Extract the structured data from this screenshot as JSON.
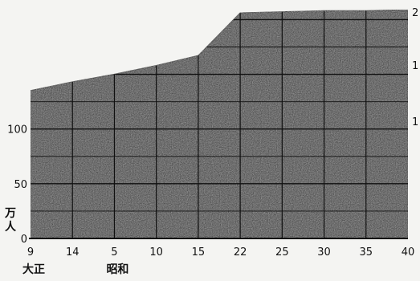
{
  "chart_data": {
    "type": "area",
    "title": "",
    "xlabel": "",
    "ylabel": "",
    "unit_label": [
      "万",
      "人"
    ],
    "x_tick_labels": [
      "9",
      "14",
      "5",
      "10",
      "15",
      "22",
      "25",
      "30",
      "35",
      "40"
    ],
    "era_labels": [
      "大正",
      "昭和"
    ],
    "y_tick_labels": [
      "0",
      "50",
      "100"
    ],
    "right_tick_labels": [
      "2",
      "1",
      "1"
    ],
    "ylim": [
      0,
      215
    ],
    "grid": true,
    "series": [
      {
        "values": [
          135,
          143,
          150,
          158,
          167,
          206,
          207,
          208,
          208,
          209
        ]
      }
    ],
    "colors": {
      "fill": "#2e2e2e",
      "grid": "#101010",
      "edge": "#111111"
    }
  }
}
